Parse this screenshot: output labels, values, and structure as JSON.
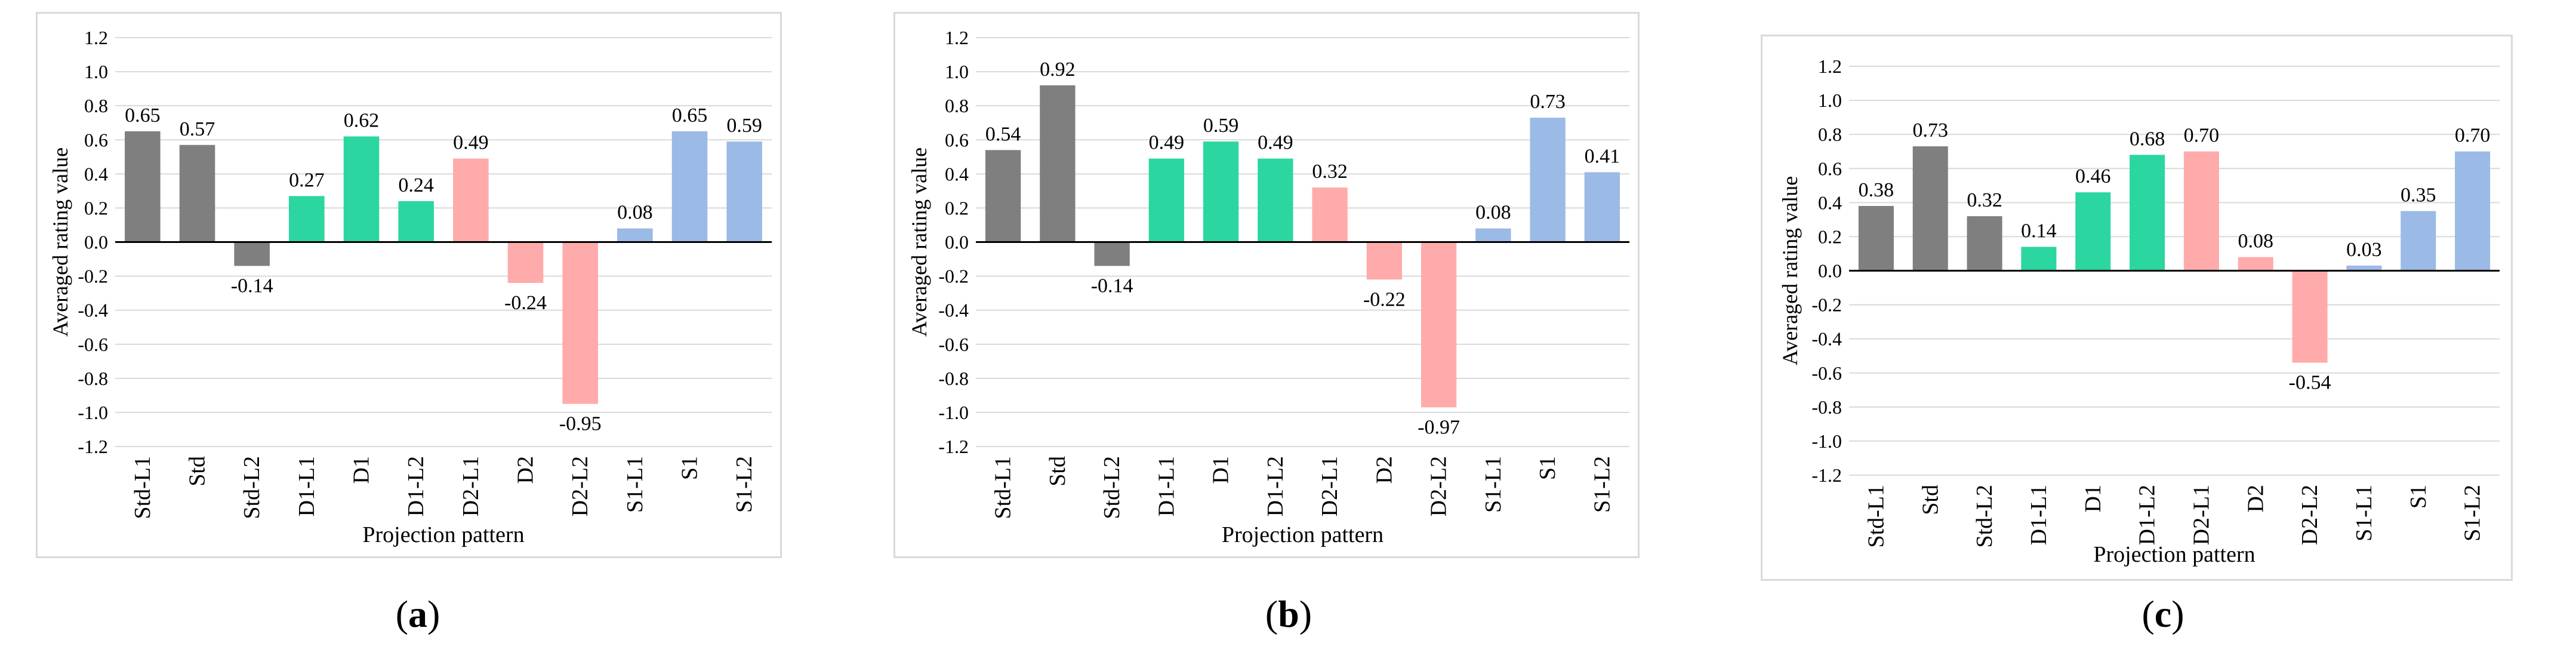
{
  "captions": [
    "(a)",
    "(b)",
    "(c)"
  ],
  "caption_letters": [
    "a",
    "b",
    "c"
  ],
  "colors": {
    "std": "#7f7f7f",
    "d1": "#2bd6a0",
    "d2": "#ffabab",
    "s1": "#9bbae5",
    "grid": "#d9d9d9",
    "axis": "#000000",
    "text": "#000000"
  },
  "chart_data": [
    {
      "type": "bar",
      "title": "",
      "xlabel": "Projection pattern",
      "ylabel": "Averaged rating value",
      "ylim": [
        -1.2,
        1.2
      ],
      "yticks": [
        "-1.2",
        "-1.0",
        "-0.8",
        "-0.6",
        "-0.4",
        "-0.2",
        "0.0",
        "0.2",
        "0.4",
        "0.6",
        "0.8",
        "1.0",
        "1.2"
      ],
      "categories": [
        "Std-L1",
        "Std",
        "Std-L2",
        "D1-L1",
        "D1",
        "D1-L2",
        "D2-L1",
        "D2",
        "D2-L2",
        "S1-L1",
        "S1",
        "S1-L2"
      ],
      "groups": [
        "std",
        "std",
        "std",
        "d1",
        "d1",
        "d1",
        "d2",
        "d2",
        "d2",
        "s1",
        "s1",
        "s1"
      ],
      "values": [
        0.65,
        0.57,
        -0.14,
        0.27,
        0.62,
        0.24,
        0.49,
        -0.24,
        -0.95,
        0.08,
        0.65,
        0.59
      ],
      "labels": [
        "0.65",
        "0.57",
        "-0.14",
        "0.27",
        "0.62",
        "0.24",
        "0.49",
        "-0.24",
        "-0.95",
        "0.08",
        "0.65",
        "0.59"
      ],
      "grid": true
    },
    {
      "type": "bar",
      "title": "",
      "xlabel": "Projection pattern",
      "ylabel": "Averaged rating value",
      "ylim": [
        -1.2,
        1.2
      ],
      "yticks": [
        "-1.2",
        "-1.0",
        "-0.8",
        "-0.6",
        "-0.4",
        "-0.2",
        "0.0",
        "0.2",
        "0.4",
        "0.6",
        "0.8",
        "1.0",
        "1.2"
      ],
      "categories": [
        "Std-L1",
        "Std",
        "Std-L2",
        "D1-L1",
        "D1",
        "D1-L2",
        "D2-L1",
        "D2",
        "D2-L2",
        "S1-L1",
        "S1",
        "S1-L2"
      ],
      "groups": [
        "std",
        "std",
        "std",
        "d1",
        "d1",
        "d1",
        "d2",
        "d2",
        "d2",
        "s1",
        "s1",
        "s1"
      ],
      "values": [
        0.54,
        0.92,
        -0.14,
        0.49,
        0.59,
        0.49,
        0.32,
        -0.22,
        -0.97,
        0.08,
        0.73,
        0.41
      ],
      "labels": [
        "0.54",
        "0.92",
        "-0.14",
        "0.49",
        "0.59",
        "0.49",
        "0.32",
        "-0.22",
        "-0.97",
        "0.08",
        "0.73",
        "0.41"
      ],
      "grid": true
    },
    {
      "type": "bar",
      "title": "",
      "xlabel": "Projection pattern",
      "ylabel": "Averaged rating value",
      "ylim": [
        -1.2,
        1.2
      ],
      "yticks": [
        "-1.2",
        "-1.0",
        "-0.8",
        "-0.6",
        "-0.4",
        "-0.2",
        "0.0",
        "0.2",
        "0.4",
        "0.6",
        "0.8",
        "1.0",
        "1.2"
      ],
      "categories": [
        "Std-L1",
        "Std",
        "Std-L2",
        "D1-L1",
        "D1",
        "D1-L2",
        "D2-L1",
        "D2",
        "D2-L2",
        "S1-L1",
        "S1",
        "S1-L2"
      ],
      "groups": [
        "std",
        "std",
        "std",
        "d1",
        "d1",
        "d1",
        "d2",
        "d2",
        "d2",
        "s1",
        "s1",
        "s1"
      ],
      "values": [
        0.38,
        0.73,
        0.32,
        0.14,
        0.46,
        0.68,
        0.7,
        0.08,
        -0.54,
        0.03,
        0.35,
        0.7
      ],
      "labels": [
        "0.38",
        "0.73",
        "0.32",
        "0.14",
        "0.46",
        "0.68",
        "0.70",
        "0.08",
        "-0.54",
        "0.03",
        "0.35",
        "0.70"
      ],
      "grid": true
    }
  ]
}
